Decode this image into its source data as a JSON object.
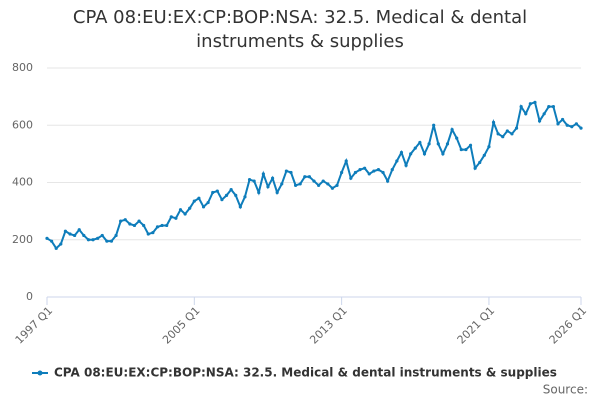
{
  "chart_data": {
    "type": "line",
    "title": "CPA 08:EU:EX:CP:BOP:NSA: 32.5. Medical & dental instruments & supplies",
    "source": "Source:",
    "categories": [
      "1997 Q1",
      null,
      null,
      null,
      null,
      null,
      null,
      null,
      null,
      null,
      null,
      null,
      null,
      null,
      null,
      null,
      null,
      null,
      null,
      null,
      null,
      null,
      null,
      null,
      null,
      null,
      null,
      null,
      null,
      null,
      null,
      null,
      "2005 Q1",
      null,
      null,
      null,
      null,
      null,
      null,
      null,
      null,
      null,
      null,
      null,
      null,
      null,
      null,
      null,
      null,
      null,
      null,
      null,
      null,
      null,
      null,
      null,
      null,
      null,
      null,
      null,
      null,
      null,
      null,
      null,
      "2013 Q1",
      null,
      null,
      null,
      null,
      null,
      null,
      null,
      null,
      null,
      null,
      null,
      null,
      null,
      null,
      null,
      null,
      null,
      null,
      null,
      null,
      null,
      null,
      null,
      null,
      null,
      null,
      null,
      null,
      null,
      null,
      null,
      "2021 Q1",
      null,
      null,
      null,
      null,
      null,
      null,
      null,
      null,
      null,
      null,
      null,
      null,
      null,
      null,
      null,
      null,
      null,
      null,
      null,
      "2026 Q1"
    ],
    "series": [
      {
        "name": "CPA 08:EU:EX:CP:BOP:NSA: 32.5. Medical & dental instruments & supplies",
        "color": "#0e7dbb",
        "values": [
          205,
          195,
          170,
          185,
          230,
          220,
          215,
          235,
          215,
          200,
          200,
          205,
          215,
          195,
          195,
          215,
          265,
          270,
          255,
          250,
          265,
          250,
          220,
          225,
          245,
          250,
          250,
          280,
          275,
          305,
          290,
          310,
          335,
          345,
          315,
          330,
          365,
          370,
          340,
          355,
          375,
          355,
          315,
          350,
          410,
          405,
          365,
          430,
          385,
          415,
          365,
          395,
          440,
          435,
          390,
          395,
          420,
          420,
          405,
          390,
          405,
          395,
          380,
          390,
          435,
          475,
          415,
          435,
          445,
          450,
          430,
          440,
          445,
          435,
          405,
          445,
          475,
          505,
          460,
          500,
          520,
          540,
          500,
          535,
          600,
          535,
          500,
          535,
          585,
          555,
          515,
          515,
          530,
          450,
          470,
          495,
          525,
          610,
          570,
          560,
          580,
          570,
          590,
          665,
          640,
          675,
          680,
          615,
          640,
          665,
          665,
          605,
          620,
          600,
          595,
          605,
          590
        ]
      }
    ],
    "ylim": [
      0,
      800
    ],
    "yticks": [
      0,
      200,
      400,
      600,
      800
    ],
    "grid": true
  }
}
